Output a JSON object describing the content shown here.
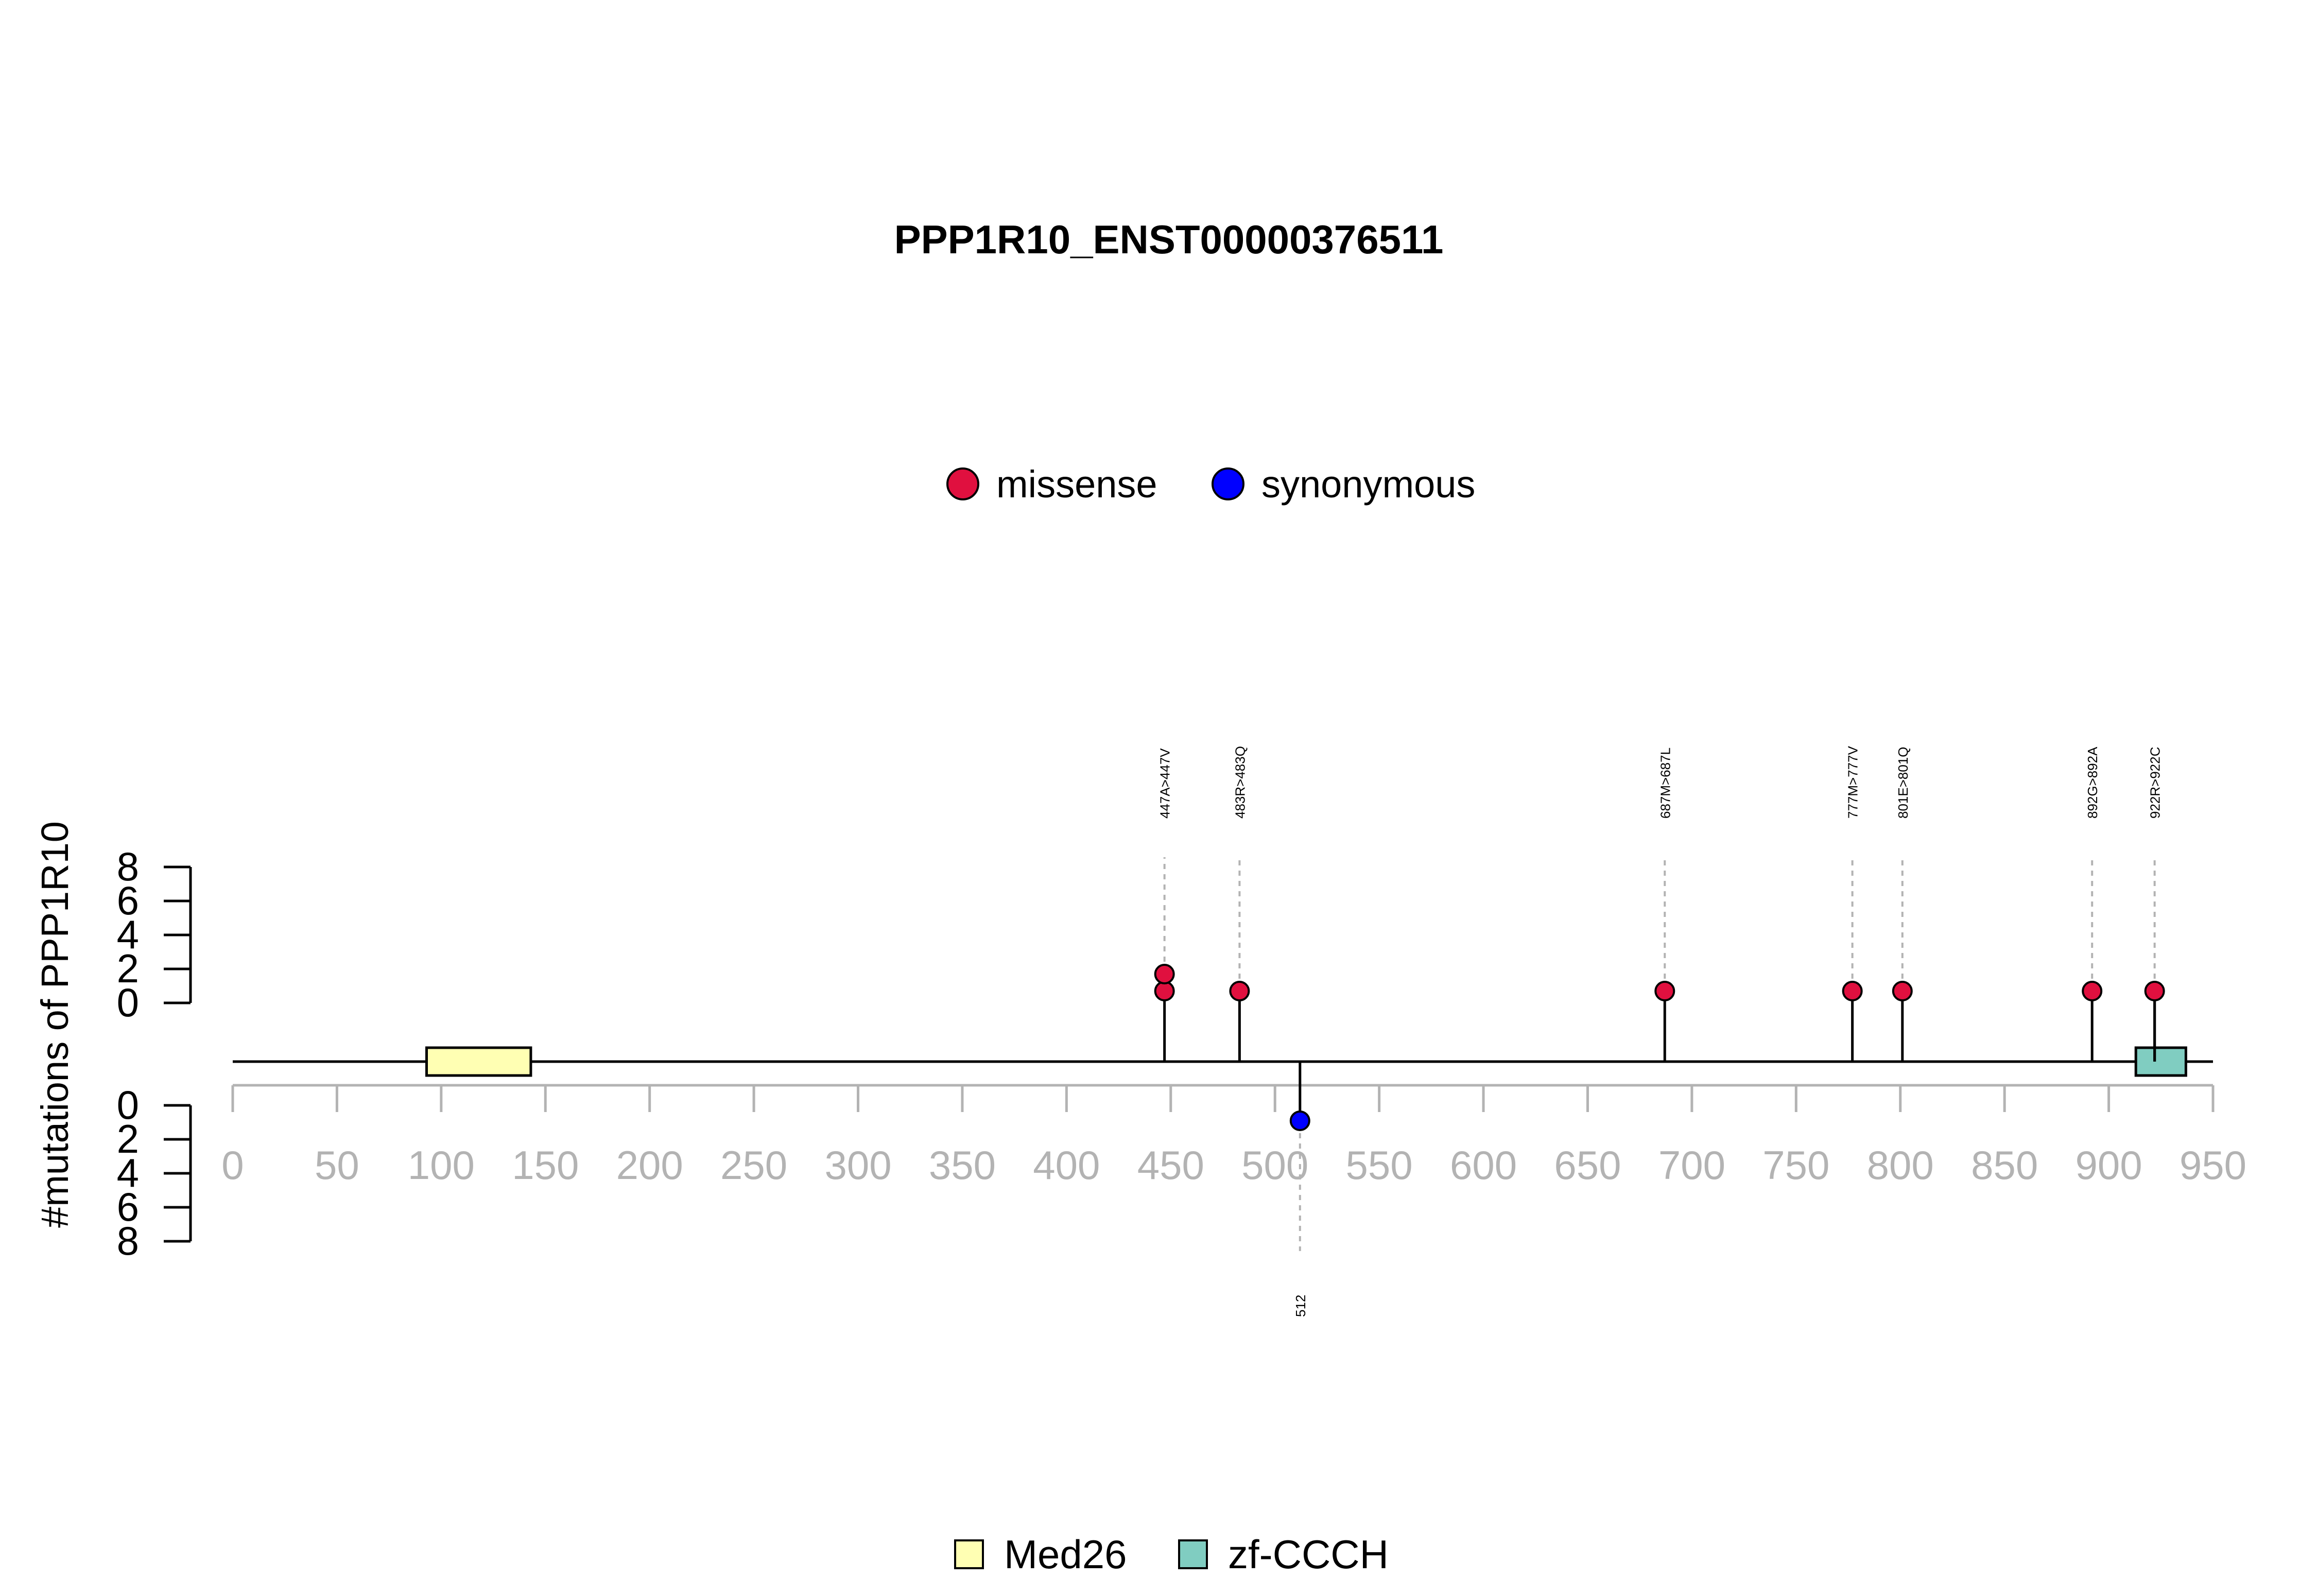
{
  "chart_data": {
    "type": "lollipop",
    "title": "PPP1R10_ENST00000376511",
    "ylabel": "#mutations of PPP1R10",
    "x_ticks": [
      0,
      50,
      100,
      150,
      200,
      250,
      300,
      350,
      400,
      450,
      500,
      550,
      600,
      650,
      700,
      750,
      800,
      850,
      900,
      950
    ],
    "xlim": [
      0,
      950
    ],
    "y_ticks_upper": [
      0,
      2,
      4,
      6,
      8
    ],
    "y_ticks_lower": [
      0,
      2,
      4,
      6,
      8
    ],
    "ylim": [
      0,
      8
    ],
    "legend_top": [
      {
        "label": "missense",
        "color": "#e0103f"
      },
      {
        "label": "synonymous",
        "color": "#0000ff"
      }
    ],
    "legend_bottom": [
      {
        "label": "Med26",
        "color": "#ffffb3"
      },
      {
        "label": "zf-CCCH",
        "color": "#80cdc1"
      }
    ],
    "domains": [
      {
        "name": "Med26",
        "start": 93,
        "end": 143,
        "color": "#ffffb3"
      },
      {
        "name": "zf-CCCH",
        "start": 913,
        "end": 937,
        "color": "#80cdc1"
      }
    ],
    "mutations_upper": [
      {
        "label": "447A>447V",
        "position": 447,
        "count": 2,
        "type": "missense",
        "color": "#e0103f"
      },
      {
        "label": "483R>483Q",
        "position": 483,
        "count": 1,
        "type": "missense",
        "color": "#e0103f"
      },
      {
        "label": "687M>687L",
        "position": 687,
        "count": 1,
        "type": "missense",
        "color": "#e0103f"
      },
      {
        "label": "777M>777V",
        "position": 777,
        "count": 1,
        "type": "missense",
        "color": "#e0103f"
      },
      {
        "label": "801E>801Q",
        "position": 801,
        "count": 1,
        "type": "missense",
        "color": "#e0103f"
      },
      {
        "label": "892G>892A",
        "position": 892,
        "count": 1,
        "type": "missense",
        "color": "#e0103f"
      },
      {
        "label": "922R>922C",
        "position": 922,
        "count": 1,
        "type": "missense",
        "color": "#e0103f"
      }
    ],
    "mutations_lower": [
      {
        "label": "512",
        "position": 512,
        "count": 1,
        "type": "synonymous",
        "color": "#0000ff"
      }
    ]
  }
}
